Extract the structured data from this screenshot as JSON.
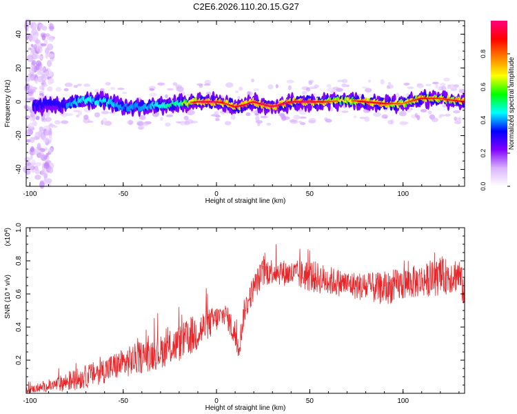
{
  "title": "C2E6.2026.110.20.15.G27",
  "colors": {
    "snr_line": "#e8262a",
    "spec_background": "#ffffff",
    "axes": "#000000"
  },
  "chart_data": [
    {
      "type": "heatmap",
      "xlabel": "Height of straight line (km)",
      "ylabel": "Frequency (Hz)",
      "xlim": [
        -102,
        133
      ],
      "ylim": [
        -50,
        48
      ],
      "xticks": [
        -100,
        -50,
        0,
        50,
        100
      ],
      "yticks": [
        -40,
        -20,
        0,
        20,
        40
      ],
      "grid": false,
      "colorbar": {
        "label": "Normalized spectral amplitude",
        "range": [
          0,
          1
        ],
        "ticks": [
          "0.0",
          "0.2",
          "0.4",
          "0.6",
          "0.8"
        ],
        "colormap": [
          "#ffffff",
          "#d9b3ff",
          "#8000ff",
          "#0000ff",
          "#00ffff",
          "#00ff00",
          "#ffff00",
          "#ff8000",
          "#ff0000",
          "#ff0080"
        ]
      },
      "ridge": {
        "description_points_x": [
          -100,
          -90,
          -80,
          -70,
          -60,
          -50,
          -40,
          -30,
          -20,
          -10,
          0,
          5,
          10,
          15,
          20,
          30,
          40,
          50,
          60,
          70,
          80,
          90,
          100,
          110,
          120,
          133
        ],
        "center_freq": [
          -2,
          -2,
          -2,
          1,
          0,
          -3,
          -3,
          -2,
          -1,
          0,
          0,
          -1,
          -3,
          -2,
          0,
          -3,
          0,
          0,
          0,
          1,
          0,
          -1,
          -1,
          2,
          2,
          0
        ],
        "peak_amplitude": [
          0.3,
          0.35,
          0.4,
          0.45,
          0.45,
          0.4,
          0.4,
          0.45,
          0.55,
          0.9,
          0.95,
          0.8,
          0.9,
          0.9,
          0.9,
          0.95,
          0.9,
          0.95,
          0.8,
          0.7,
          0.9,
          0.85,
          0.75,
          0.85,
          0.8,
          0.85
        ]
      }
    },
    {
      "type": "line",
      "xlabel": "Height of straight line (km)",
      "ylabel": "SNR (10 * v/v)",
      "yscale_label": "(x10",
      "yscale_exp": "4",
      "yscale_close": ")",
      "xlim": [
        -102,
        133
      ],
      "ylim": [
        0,
        1.0
      ],
      "xticks": [
        -100,
        -50,
        0,
        50,
        100
      ],
      "yticks": [
        0.2,
        0.4,
        0.6,
        0.8,
        1.0
      ],
      "grid": false,
      "series": [
        {
          "x": [
            -102,
            -90,
            -80,
            -70,
            -60,
            -50,
            -40,
            -30,
            -20,
            -10,
            0,
            5,
            10,
            12,
            15,
            20,
            25,
            30,
            40,
            50,
            60,
            70,
            80,
            90,
            100,
            110,
            120,
            130,
            133
          ],
          "mean": [
            0.02,
            0.04,
            0.07,
            0.1,
            0.14,
            0.18,
            0.22,
            0.25,
            0.3,
            0.37,
            0.45,
            0.48,
            0.35,
            0.28,
            0.5,
            0.64,
            0.73,
            0.74,
            0.72,
            0.71,
            0.68,
            0.66,
            0.64,
            0.63,
            0.66,
            0.68,
            0.7,
            0.72,
            0.6
          ],
          "spread": [
            0.02,
            0.03,
            0.06,
            0.07,
            0.08,
            0.09,
            0.1,
            0.1,
            0.11,
            0.12,
            0.08,
            0.06,
            0.1,
            0.08,
            0.08,
            0.08,
            0.09,
            0.08,
            0.08,
            0.1,
            0.09,
            0.08,
            0.09,
            0.1,
            0.1,
            0.1,
            0.11,
            0.11,
            0.1
          ]
        }
      ]
    }
  ]
}
